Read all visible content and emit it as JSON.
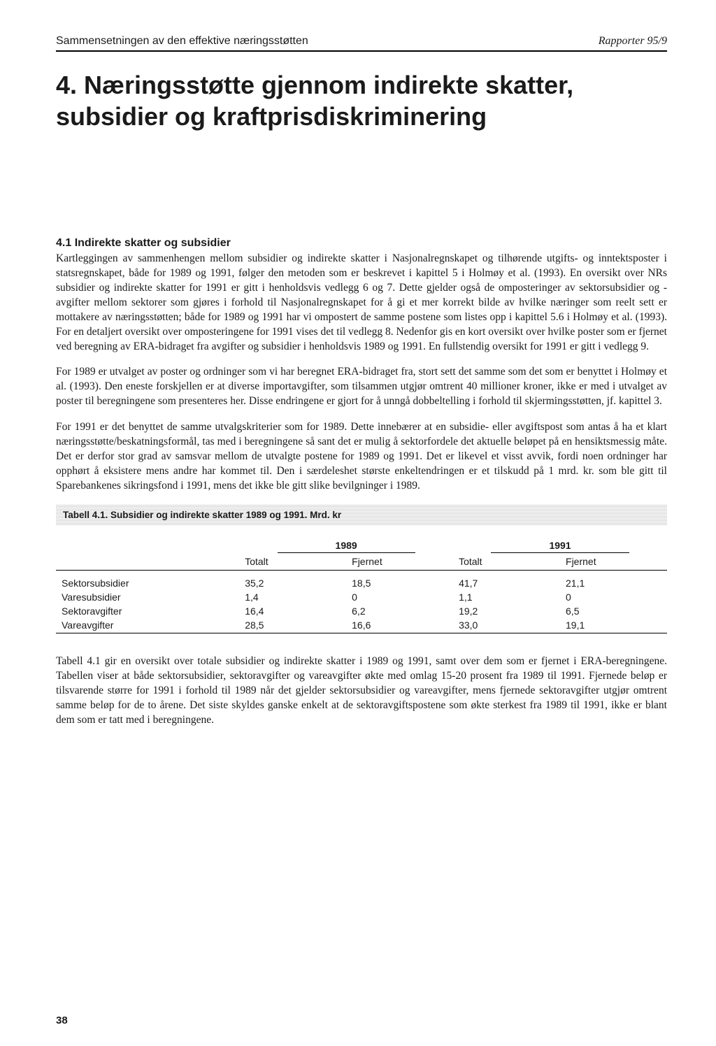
{
  "header": {
    "left": "Sammensetningen av den effektive næringsstøtten",
    "right": "Rapporter 95/9"
  },
  "chapter": {
    "number_title": "4. Næringsstøtte gjennom indirekte skatter, subsidier og kraftprisdiskriminering"
  },
  "section": {
    "heading": "4.1 Indirekte skatter og subsidier",
    "para1": "Kartleggingen av sammenhengen mellom subsidier og indirekte skatter i Nasjonalregnskapet og tilhørende utgifts- og inntektsposter i statsregnskapet, både for 1989 og 1991, følger den metoden som er beskrevet i kapittel 5 i Holmøy et al. (1993). En oversikt over NRs subsidier og indirekte skatter for 1991 er gitt i henholdsvis vedlegg 6 og 7. Dette gjelder også de omposteringer av sektorsubsidier og -avgifter mellom sektorer som gjøres i forhold til Nasjonalregnskapet for å gi et mer korrekt bilde av hvilke næringer som reelt sett er mottakere av næringsstøtten; både for 1989 og 1991 har vi ompostert de samme postene som listes opp i kapittel 5.6 i Holmøy et al. (1993). For en detaljert oversikt over omposteringene for 1991 vises det til vedlegg 8. Nedenfor gis en kort oversikt over hvilke poster som er fjernet ved beregning av ERA-bidraget fra avgifter og subsidier i henholdsvis 1989 og 1991. En fullstendig oversikt for 1991 er gitt i vedlegg 9.",
    "para2": "For 1989 er utvalget av poster og ordninger som vi har beregnet ERA-bidraget fra, stort sett det samme som det som er benyttet i Holmøy et al. (1993). Den eneste forskjellen er at diverse importavgifter, som tilsammen utgjør omtrent 40 millioner kroner, ikke er med i utvalget av poster til beregningene som presenteres her. Disse endringene er gjort for å unngå dobbeltelling i forhold til skjermingsstøtten, jf. kapittel 3.",
    "para3": "For 1991 er det benyttet de samme utvalgskriterier som for 1989. Dette innebærer at en subsidie- eller avgiftspost som antas å ha et klart næringsstøtte/beskatningsformål, tas med i beregningene så sant det er mulig å sektorfordele det aktuelle beløpet på en hensiktsmessig måte. Det er derfor stor grad av samsvar mellom de utvalgte postene for 1989 og 1991. Det er likevel et visst avvik, fordi noen ordninger har opphørt å eksistere mens andre har kommet til. Den i særdeleshet største enkeltendringen er et tilskudd på 1 mrd. kr. som ble gitt til Sparebankenes sikringsfond i 1991, mens det ikke ble gitt slike bevilgninger i 1989."
  },
  "table": {
    "caption": "Tabell 4.1. Subsidier og indirekte skatter 1989 og 1991. Mrd. kr",
    "years": [
      "1989",
      "1991"
    ],
    "col_labels": [
      "Totalt",
      "Fjernet",
      "Totalt",
      "Fjernet"
    ],
    "rows": [
      {
        "label": "Sektorsubsidier",
        "values": [
          "35,2",
          "18,5",
          "41,7",
          "21,1"
        ]
      },
      {
        "label": "Varesubsidier",
        "values": [
          "1,4",
          "0",
          "1,1",
          "0"
        ]
      },
      {
        "label": "Sektoravgifter",
        "values": [
          "16,4",
          "6,2",
          "19,2",
          "6,5"
        ]
      },
      {
        "label": "Vareavgifter",
        "values": [
          "28,5",
          "16,6",
          "33,0",
          "19,1"
        ]
      }
    ]
  },
  "after_table_para": "Tabell 4.1 gir en oversikt over totale subsidier og indirekte skatter i 1989 og 1991, samt over dem som er fjernet i ERA-beregningene. Tabellen viser at både sektorsubsidier, sektoravgifter og vareavgifter økte med omlag 15-20 prosent fra 1989 til 1991. Fjernede beløp er tilsvarende større for 1991 i forhold til 1989 når det gjelder sektorsubsidier og vareavgifter, mens fjernede sektoravgifter utgjør omtrent samme beløp for de to årene. Det siste skyldes ganske enkelt at de sektoravgiftspostene som økte sterkest fra 1989 til 1991, ikke er blant dem som er tatt med i beregningene.",
  "page_number": "38"
}
